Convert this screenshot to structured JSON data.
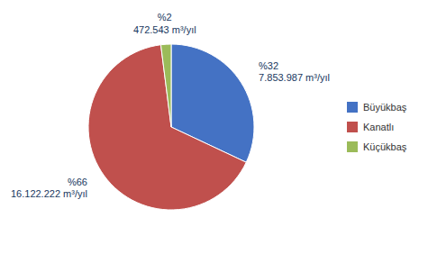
{
  "chart_data": {
    "type": "pie",
    "categories": [
      "Büyükbaş",
      "Kanatlı",
      "Küçükbaş"
    ],
    "values": [
      32,
      66,
      2
    ],
    "value_labels": [
      "%32\n7.853.987 m³/yıl",
      "%66\n16.122.222 m³/yıl",
      "%2\n472.543 m³/yıl"
    ],
    "colors": [
      "#4472C4",
      "#C0504D",
      "#9BBB59"
    ],
    "legend": "right"
  }
}
